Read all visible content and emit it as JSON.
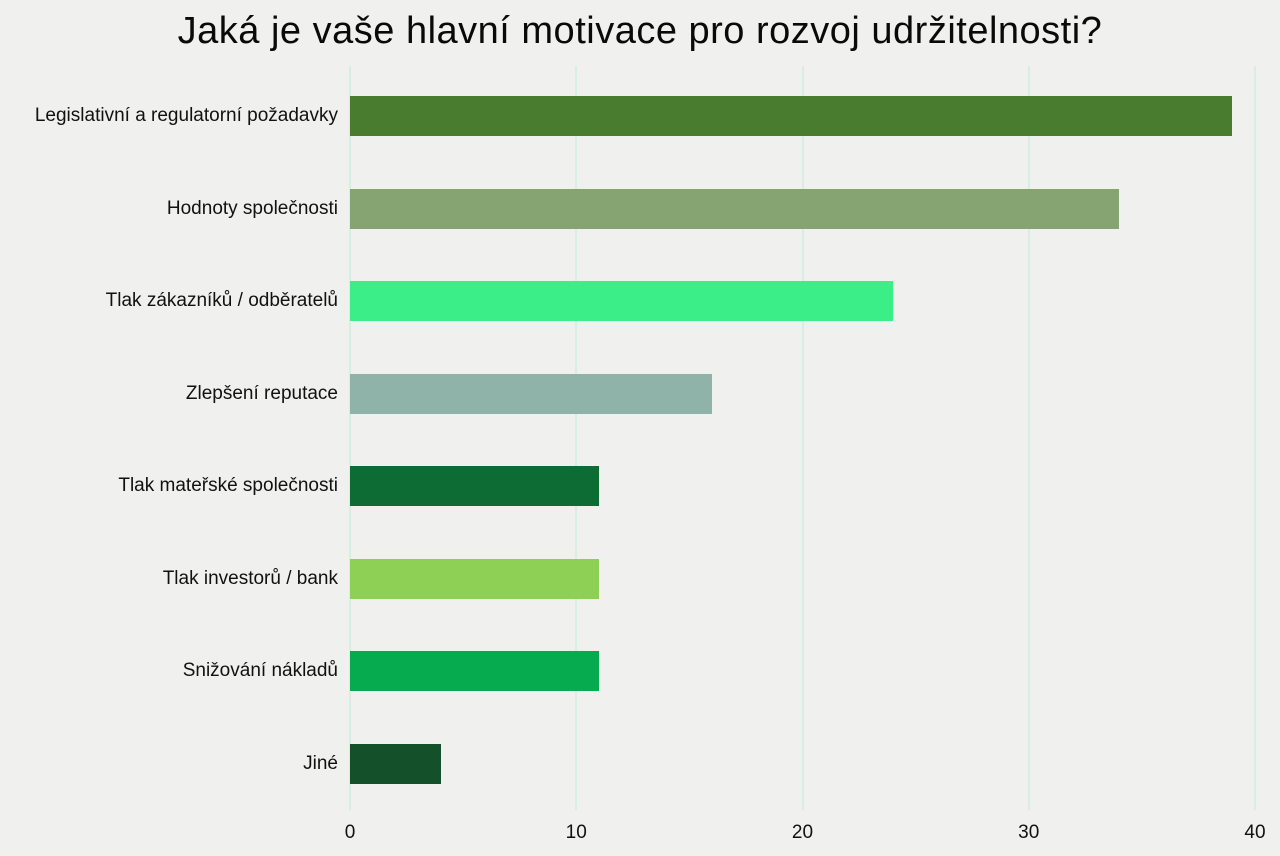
{
  "page": {
    "background_color": "#f0f0ee",
    "gridline_color": "#d9eee3",
    "text_color": "#111111"
  },
  "chart_data": {
    "type": "bar",
    "orientation": "horizontal",
    "title": "Jaká je vaše hlavní motivace pro rozvoj udržitelnosti?",
    "categories": [
      "Legislativní a regulatorní požadavky",
      "Hodnoty společnosti",
      "Tlak zákazníků / odběratelů",
      "Zlepšení reputace",
      "Tlak mateřské společnosti",
      "Tlak investorů / bank",
      "Snižování nákladů",
      "Jiné"
    ],
    "values": [
      39,
      34,
      24,
      16,
      11,
      11,
      11,
      4
    ],
    "bar_colors": [
      "#4a7c30",
      "#85a471",
      "#3cee87",
      "#8fb3a9",
      "#0c6c33",
      "#8ed055",
      "#05ab4e",
      "#14502a"
    ],
    "xlabel": "",
    "ylabel": "",
    "x_ticks": [
      0,
      10,
      20,
      30,
      40
    ],
    "xlim": [
      0,
      40
    ],
    "grid": true,
    "legend": false
  }
}
